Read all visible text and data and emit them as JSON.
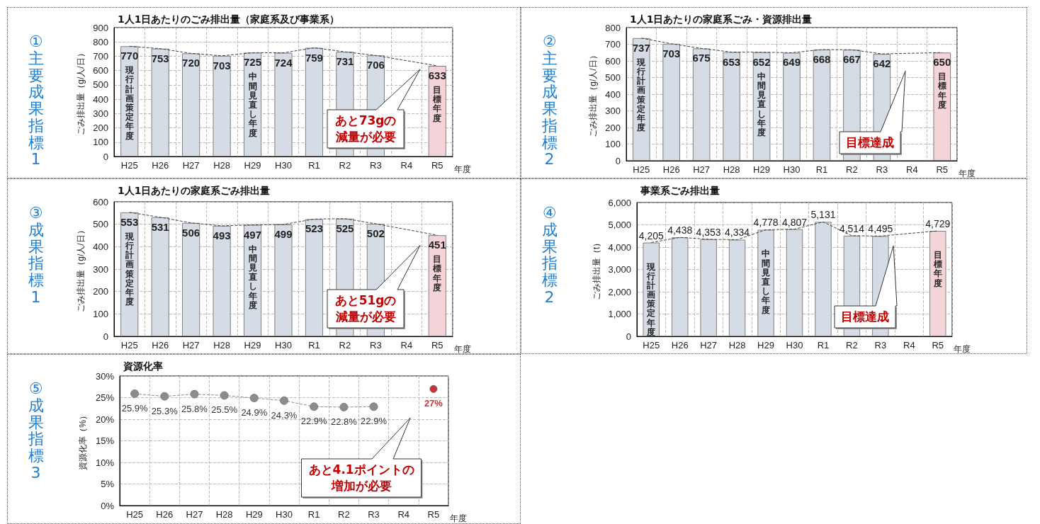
{
  "chart_data": [
    {
      "type": "bar",
      "title": "1人1日あたりのごみ排出量（家庭系及び事業系）",
      "ylabel": "ごみ排出量（g/人/日）",
      "xlabel": "年度",
      "categories": [
        "H25",
        "H26",
        "H27",
        "H28",
        "H29",
        "H30",
        "R1",
        "R2",
        "R3",
        "R4",
        "R5"
      ],
      "series": [
        {
          "values": [
            770,
            753,
            720,
            703,
            725,
            724,
            759,
            731,
            706,
            null,
            633
          ],
          "colors": [
            "#d6dce5",
            "#d6dce5",
            "#d6dce5",
            "#d6dce5",
            "#d6dce5",
            "#d6dce5",
            "#d6dce5",
            "#d6dce5",
            "#d6dce5",
            "#d6dce5",
            "#f4d4d8"
          ]
        },
        {
          "type": "line",
          "color": "#404040",
          "values": [
            770,
            753,
            720,
            703,
            725,
            724,
            759,
            731,
            706,
            null,
            633
          ],
          "line_style": "dashed",
          "marker": "none",
          "data_labels": false
        }
      ],
      "data_labels": true,
      "ylim": [
        0,
        900
      ],
      "yticks": [
        0,
        100,
        200,
        300,
        400,
        500,
        600,
        700,
        800,
        900
      ],
      "grid": true,
      "annotations": [
        "①主要成果指標1",
        "現行計画策定年度",
        "中間見直し年度",
        "目標年度",
        "あと73gの減量が必要"
      ]
    },
    {
      "type": "bar",
      "title": "1人1日あたりの家庭系ごみ・資源排出量",
      "ylabel": "ごみ排出量（g/人/日）",
      "xlabel": "年度",
      "categories": [
        "H25",
        "H26",
        "H27",
        "H28",
        "H29",
        "H30",
        "R1",
        "R2",
        "R3",
        "R4",
        "R5"
      ],
      "series": [
        {
          "values": [
            737,
            703,
            675,
            653,
            652,
            649,
            668,
            667,
            642,
            null,
            650
          ],
          "colors": [
            "#d6dce5",
            "#d6dce5",
            "#d6dce5",
            "#d6dce5",
            "#d6dce5",
            "#d6dce5",
            "#d6dce5",
            "#d6dce5",
            "#d6dce5",
            "#d6dce5",
            "#f4d4d8"
          ]
        },
        {
          "type": "line",
          "color": "#404040",
          "values": [
            737,
            703,
            675,
            653,
            652,
            649,
            668,
            667,
            642,
            null,
            650
          ],
          "line_style": "dashed",
          "marker": "none",
          "data_labels": false
        }
      ],
      "data_labels": true,
      "ylim": [
        0,
        800
      ],
      "yticks": [
        0,
        100,
        200,
        300,
        400,
        500,
        600,
        700,
        800
      ],
      "grid": true,
      "annotations": [
        "②主要成果指標2",
        "現行計画策定年度",
        "中間見直し年度",
        "目標年度",
        "目標達成"
      ]
    },
    {
      "type": "bar",
      "title": "1人1日あたりの家庭系ごみ排出量",
      "ylabel": "ごみ排出量（g/人/日）",
      "xlabel": "年度",
      "categories": [
        "H25",
        "H26",
        "H27",
        "H28",
        "H29",
        "H30",
        "R1",
        "R2",
        "R3",
        "R4",
        "R5"
      ],
      "series": [
        {
          "values": [
            553,
            531,
            506,
            493,
            497,
            499,
            523,
            525,
            502,
            null,
            451
          ],
          "colors": [
            "#d6dce5",
            "#d6dce5",
            "#d6dce5",
            "#d6dce5",
            "#d6dce5",
            "#d6dce5",
            "#d6dce5",
            "#d6dce5",
            "#d6dce5",
            "#d6dce5",
            "#f4d4d8"
          ]
        },
        {
          "type": "line",
          "color": "#404040",
          "values": [
            553,
            531,
            506,
            493,
            497,
            499,
            523,
            525,
            502,
            null,
            451
          ],
          "line_style": "dashed",
          "marker": "none",
          "data_labels": false
        }
      ],
      "data_labels": true,
      "ylim": [
        0,
        600
      ],
      "yticks": [
        0,
        100,
        200,
        300,
        400,
        500,
        600
      ],
      "grid": true,
      "annotations": [
        "③成果指標1",
        "現行計画策定年度",
        "中間見直し年度",
        "目標年度",
        "あと51gの減量が必要"
      ]
    },
    {
      "type": "bar",
      "title": "事業系ごみ排出量",
      "ylabel": "ごみ排出量（t）",
      "xlabel": "年度",
      "categories": [
        "H25",
        "H26",
        "H27",
        "H28",
        "H29",
        "H30",
        "R1",
        "R2",
        "R3",
        "R4",
        "R5"
      ],
      "series": [
        {
          "values": [
            4205,
            4438,
            4353,
            4334,
            4778,
            4807,
            5131,
            4514,
            4495,
            null,
            4729
          ],
          "value_labels": [
            "4,205",
            "4,438",
            "4,353",
            "4,334",
            "4,778",
            "4,807",
            "5,131",
            "4,514",
            "4,495",
            null,
            "4,729"
          ],
          "colors": [
            "#d6dce5",
            "#d6dce5",
            "#d6dce5",
            "#d6dce5",
            "#d6dce5",
            "#d6dce5",
            "#d6dce5",
            "#d6dce5",
            "#d6dce5",
            "#d6dce5",
            "#f4d4d8"
          ]
        },
        {
          "type": "line",
          "color": "#404040",
          "values": [
            4205,
            4438,
            4353,
            4334,
            4778,
            4807,
            5131,
            4514,
            4495,
            null,
            4729
          ],
          "line_style": "dashed",
          "marker": "none",
          "data_labels": false
        }
      ],
      "ylim": [
        0,
        6000
      ],
      "yticks": [
        {
          "value": 0,
          "label": "0"
        },
        {
          "value": 1000,
          "label": "1,000"
        },
        {
          "value": 2000,
          "label": "2,000"
        },
        {
          "value": 3000,
          "label": "3,000"
        },
        {
          "value": 4000,
          "label": "4,000"
        },
        {
          "value": 5000,
          "label": "5,000"
        },
        {
          "value": 6000,
          "label": "6,000"
        }
      ],
      "grid": true,
      "annotations": [
        "④成果指標2",
        "現行計画策定年度",
        "中間見直し年度",
        "目標年度",
        "目標達成"
      ]
    },
    {
      "type": "line",
      "title": "資源化率",
      "ylabel": "資源化率（%）",
      "xlabel": "年度",
      "categories": [
        "H25",
        "H26",
        "H27",
        "H28",
        "H29",
        "H30",
        "R1",
        "R2",
        "R3",
        "R4",
        "R5"
      ],
      "series": [
        {
          "color": "#8c8c8c",
          "values": [
            25.9,
            25.3,
            25.8,
            25.5,
            24.9,
            24.3,
            22.9,
            22.8,
            22.9,
            null,
            null
          ],
          "value_labels": [
            "25.9%",
            "25.3%",
            "25.8%",
            "25.5%",
            "24.9%",
            "24.3%",
            "22.9%",
            "22.8%",
            "22.9%",
            null,
            null
          ],
          "marker": "circle",
          "line_style": "dashed"
        },
        {
          "type": "scatter",
          "color": "#c00000",
          "values": [
            null,
            null,
            null,
            null,
            null,
            null,
            null,
            null,
            null,
            null,
            27
          ],
          "value_labels": [
            null,
            null,
            null,
            null,
            null,
            null,
            null,
            null,
            null,
            null,
            "27%"
          ],
          "marker": "circle"
        }
      ],
      "ylim": [
        0,
        30
      ],
      "yticks": [
        {
          "value": 0,
          "label": "0%"
        },
        {
          "value": 5,
          "label": "5%"
        },
        {
          "value": 10,
          "label": "10%"
        },
        {
          "value": 15,
          "label": "15%"
        },
        {
          "value": 20,
          "label": "20%"
        },
        {
          "value": 25,
          "label": "25%"
        },
        {
          "value": 30,
          "label": "30%"
        }
      ],
      "grid": true,
      "annotations": [
        "⑤成果指標3",
        "あと4.1ポイントの増加が必要"
      ]
    }
  ]
}
